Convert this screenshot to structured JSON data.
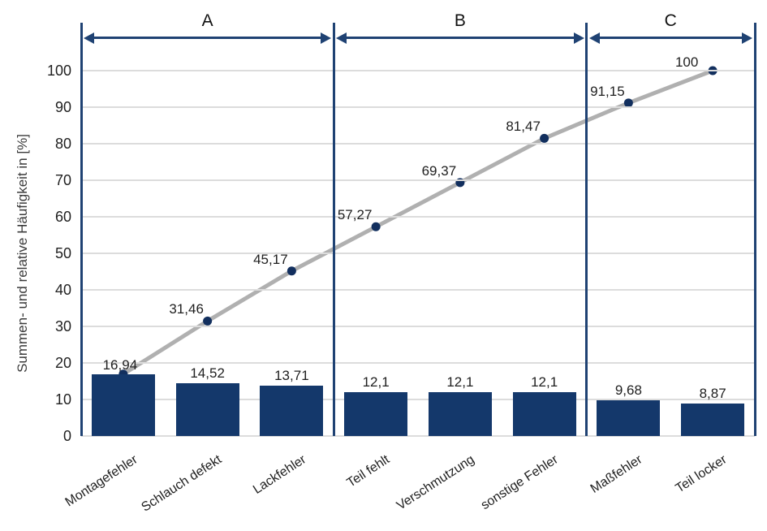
{
  "chart_data": {
    "type": "pareto",
    "title": "",
    "ylabel": "Summen- und relative Häufigkeit in [%]",
    "xlabel": "",
    "ylim": [
      0,
      100
    ],
    "yticks": [
      0,
      10,
      20,
      30,
      40,
      50,
      60,
      70,
      80,
      90,
      100
    ],
    "grid": "horizontal",
    "legend_position": "none",
    "categories": [
      "Montagefehler",
      "Schlauch defekt",
      "Lackfehler",
      "Teil fehlt",
      "Verschmutzung",
      "sonstige Fehler",
      "Maßfehler",
      "Teil locker"
    ],
    "series": [
      {
        "name": "relative Häufigkeit",
        "type": "bar",
        "values": [
          16.94,
          14.52,
          13.71,
          12.1,
          12.1,
          12.1,
          9.68,
          8.87
        ],
        "labels": [
          "16,94",
          "14,52",
          "13,71",
          "12,1",
          "12,1",
          "12,1",
          "9,68",
          "8,87"
        ]
      },
      {
        "name": "Summenhäufigkeit",
        "type": "line",
        "values": [
          16.94,
          31.46,
          45.17,
          57.27,
          69.37,
          81.47,
          91.15,
          100
        ],
        "labels": [
          "16,94",
          "31,46",
          "45,17",
          "57,27",
          "69,37",
          "81,47",
          "91,15",
          "100"
        ]
      }
    ],
    "zones": [
      {
        "label": "A",
        "from": 0,
        "to": 3
      },
      {
        "label": "B",
        "from": 3,
        "to": 6
      },
      {
        "label": "C",
        "from": 6,
        "to": 8
      }
    ]
  },
  "colors": {
    "bar": "#14386b",
    "dot": "#122f5e",
    "line": "#b0b0b0",
    "zone": "#1f4273",
    "grid": "#dcdcdc",
    "text": "#1f1f1f",
    "axis_title": "#3a3a3a"
  }
}
